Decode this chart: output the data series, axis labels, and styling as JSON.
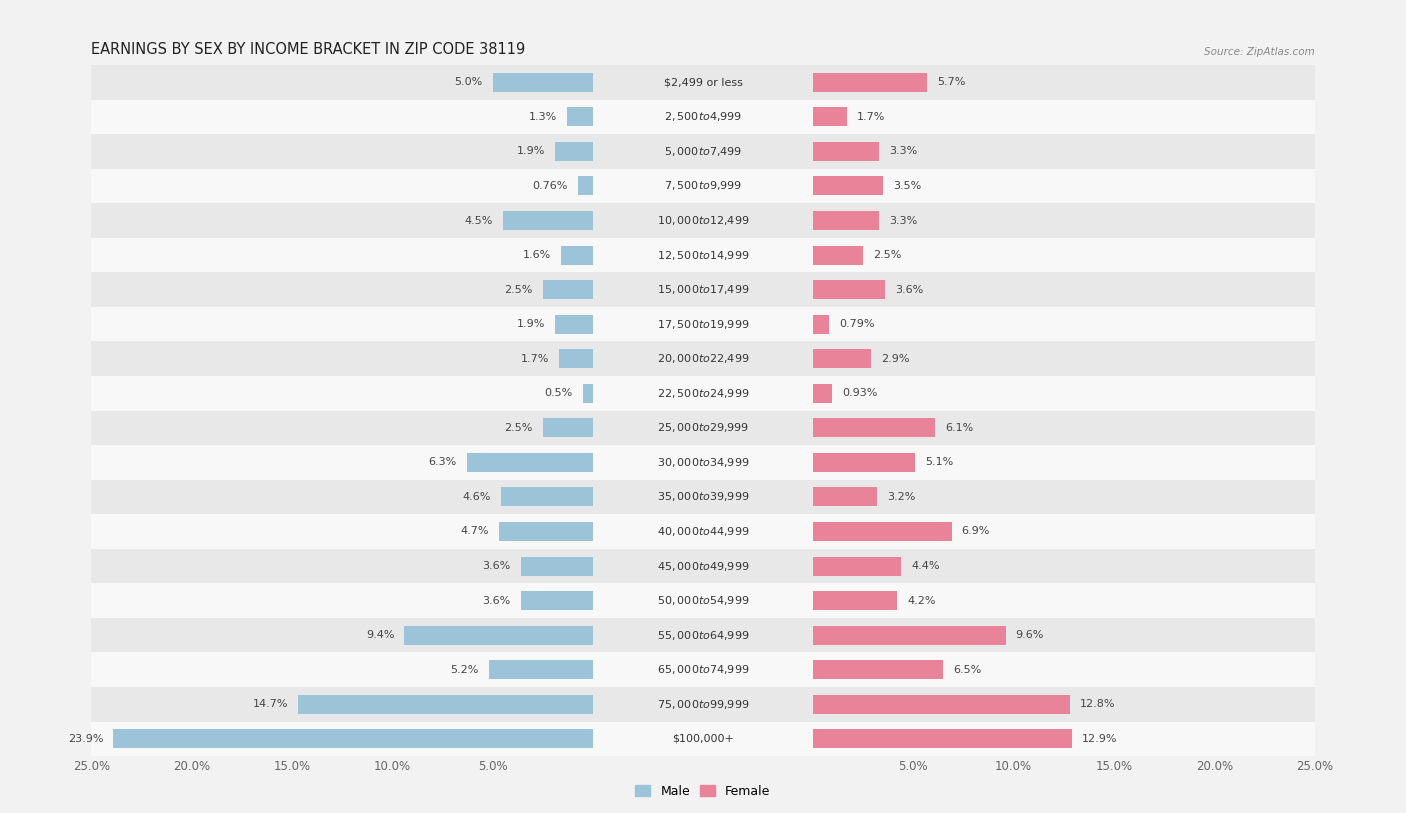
{
  "title": "EARNINGS BY SEX BY INCOME BRACKET IN ZIP CODE 38119",
  "source": "Source: ZipAtlas.com",
  "categories": [
    "$2,499 or less",
    "$2,500 to $4,999",
    "$5,000 to $7,499",
    "$7,500 to $9,999",
    "$10,000 to $12,499",
    "$12,500 to $14,999",
    "$15,000 to $17,499",
    "$17,500 to $19,999",
    "$20,000 to $22,499",
    "$22,500 to $24,999",
    "$25,000 to $29,999",
    "$30,000 to $34,999",
    "$35,000 to $39,999",
    "$40,000 to $44,999",
    "$45,000 to $49,999",
    "$50,000 to $54,999",
    "$55,000 to $64,999",
    "$65,000 to $74,999",
    "$75,000 to $99,999",
    "$100,000+"
  ],
  "male_values": [
    5.0,
    1.3,
    1.9,
    0.76,
    4.5,
    1.6,
    2.5,
    1.9,
    1.7,
    0.5,
    2.5,
    6.3,
    4.6,
    4.7,
    3.6,
    3.6,
    9.4,
    5.2,
    14.7,
    23.9
  ],
  "female_values": [
    5.7,
    1.7,
    3.3,
    3.5,
    3.3,
    2.5,
    3.6,
    0.79,
    2.9,
    0.93,
    6.1,
    5.1,
    3.2,
    6.9,
    4.4,
    4.2,
    9.6,
    6.5,
    12.8,
    12.9
  ],
  "male_color": "#9dc3d9",
  "female_color": "#e8839a",
  "bar_height": 0.55,
  "xlim": 25.0,
  "bg_color": "#f2f2f2",
  "row_light": "#f8f8f8",
  "row_dark": "#e8e8e8",
  "title_fontsize": 10.5,
  "label_fontsize": 8.0,
  "category_fontsize": 8.0,
  "axis_fontsize": 8.5,
  "source_fontsize": 7.5
}
